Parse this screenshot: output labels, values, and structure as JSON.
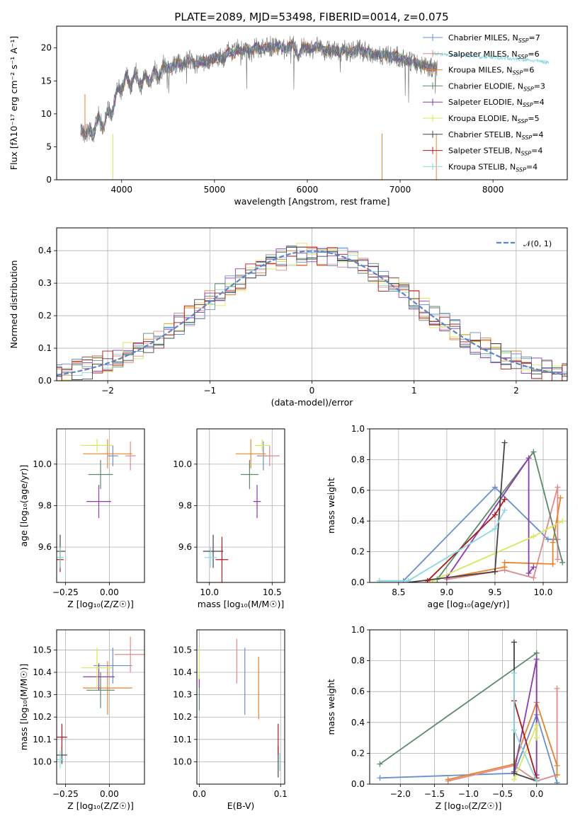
{
  "figure": {
    "title": "PLATE=2089, MJD=53498, FIBERID=0014, z=0.075"
  },
  "colors": {
    "Chabrier MILES": "#6a8fd0",
    "Salpeter MILES": "#e08a8a",
    "Kroupa MILES": "#e8832a",
    "Chabrier ELODIE": "#5a8a6a",
    "Salpeter ELODIE": "#8e3ab0",
    "Kroupa ELODIE": "#d8e85a",
    "Chabrier STELIB": "#444444",
    "Salpeter STELIB": "#b01818",
    "Kroupa STELIB": "#8ad8e0",
    "normal": "#5b84c9"
  },
  "chart_data": [
    {
      "id": "spectrum",
      "type": "line",
      "xlabel": "wavelength [Angstrom, rest frame]",
      "ylabel": "Flux [fλ10⁻¹⁷ erg cm⁻² s⁻¹ A⁻¹]",
      "xlim": [
        3300,
        8800
      ],
      "ylim": [
        0,
        23.3
      ],
      "xticks": [
        4000,
        5000,
        6000,
        7000,
        8000
      ],
      "yticks": [
        0,
        5,
        10,
        15,
        20
      ],
      "grid": false,
      "legend_loc": "upper-right",
      "legend": [
        {
          "name": "Chabrier MILES",
          "nssp": "7"
        },
        {
          "name": "Salpeter MILES",
          "nssp": "6"
        },
        {
          "name": "Kroupa MILES",
          "nssp": "6"
        },
        {
          "name": "Chabrier ELODIE",
          "nssp": "3"
        },
        {
          "name": "Salpeter ELODIE",
          "nssp": "4"
        },
        {
          "name": "Kroupa ELODIE",
          "nssp": "5"
        },
        {
          "name": "Chabrier STELIB",
          "nssp": "4"
        },
        {
          "name": "Salpeter STELIB",
          "nssp": "4"
        },
        {
          "name": "Kroupa STELIB",
          "nssp": "4"
        }
      ],
      "data_trace": {
        "x": [
          3550,
          3600,
          3650,
          3700,
          3750,
          3800,
          3850,
          3900,
          3950,
          4000,
          4050,
          4100,
          4150,
          4200,
          4250,
          4300,
          4350,
          4400,
          4450,
          4500,
          4550,
          4600,
          4650,
          4700,
          4750,
          4800,
          4850,
          4900,
          4950,
          5000,
          5050,
          5100,
          5150,
          5200,
          5250,
          5300,
          5350,
          5400,
          5450,
          5500,
          5550,
          5600,
          5650,
          5700,
          5750,
          5800,
          5850,
          5900,
          5950,
          6000,
          6050,
          6100,
          6150,
          6200,
          6250,
          6300,
          6350,
          6400,
          6450,
          6500,
          6550,
          6600,
          6650,
          6700,
          6750,
          6800,
          6850,
          6900,
          6950,
          7000,
          7050,
          7100,
          7150,
          7200,
          7250,
          7300,
          7350,
          7400
        ],
        "y": [
          8.0,
          6.8,
          7.5,
          7.0,
          9.8,
          7.5,
          10.6,
          9.8,
          14.0,
          13.5,
          15.8,
          14.0,
          16.5,
          13.8,
          16.0,
          14.5,
          16.8,
          15.5,
          17.5,
          16.8,
          17.2,
          17.8,
          17.5,
          18.2,
          18.0,
          17.5,
          18.0,
          17.8,
          18.2,
          18.5,
          18.8,
          18.3,
          19.5,
          19.0,
          19.8,
          19.5,
          20.0,
          19.4,
          20.2,
          19.8,
          20.1,
          20.3,
          20.0,
          20.5,
          19.8,
          20.2,
          20.4,
          18.5,
          20.3,
          20.0,
          19.8,
          20.3,
          20.0,
          19.5,
          19.8,
          19.6,
          19.2,
          19.8,
          19.3,
          19.5,
          20.0,
          19.4,
          19.5,
          19.0,
          19.2,
          18.8,
          19.0,
          18.6,
          18.8,
          18.5,
          18.2,
          18.0,
          17.8,
          17.5,
          17.4,
          17.2,
          17.0,
          16.8
        ]
      },
      "model_trace": {
        "x": [
          7350,
          7500,
          7650,
          7800,
          7950,
          8100,
          8250,
          8400,
          8550,
          8600
        ],
        "y": [
          19.2,
          19.0,
          18.9,
          18.7,
          18.6,
          18.5,
          18.3,
          18.1,
          17.9,
          17.8
        ]
      }
    },
    {
      "id": "residuals",
      "type": "bar",
      "xlabel": "(data-model)/error",
      "ylabel": "Normed distribution",
      "xlim": [
        -2.5,
        2.5
      ],
      "ylim": [
        0,
        0.47
      ],
      "xticks": [
        -2,
        -1,
        0,
        1,
        2
      ],
      "yticks": [
        0.0,
        0.1,
        0.2,
        0.3,
        0.4
      ],
      "grid": true,
      "legend_loc": "upper-right",
      "normal_label": "𝒩(0, 1)",
      "bin_width": 0.1
    },
    {
      "id": "age_vs_Z",
      "type": "scatter",
      "xlabel": "Z [log₁₀(Z/Z☉)]",
      "ylabel": "age  [log₁₀(age/yr)]",
      "xlim": [
        -0.3,
        0.2
      ],
      "ylim": [
        9.43,
        10.17
      ],
      "xticks": [
        -0.25,
        0.0
      ],
      "xticklabels": [
        "−0.25",
        "0.00"
      ],
      "yticks": [
        9.6,
        9.8,
        10.0
      ],
      "grid": true,
      "points": [
        {
          "model": "Chabrier MILES",
          "x": 0.02,
          "y": 10.04,
          "xerr": 0.03,
          "yerr": 0.05
        },
        {
          "model": "Salpeter MILES",
          "x": 0.12,
          "y": 10.04,
          "xerr": 0.03,
          "yerr": 0.07
        },
        {
          "model": "Kroupa MILES",
          "x": -0.01,
          "y": 10.05,
          "xerr": 0.14,
          "yerr": 0.07
        },
        {
          "model": "Chabrier ELODIE",
          "x": -0.05,
          "y": 9.95,
          "xerr": 0.07,
          "yerr": 0.07
        },
        {
          "model": "Salpeter ELODIE",
          "x": -0.06,
          "y": 9.82,
          "xerr": 0.07,
          "yerr": 0.08
        },
        {
          "model": "Kroupa ELODIE",
          "x": -0.07,
          "y": 10.09,
          "xerr": 0.09,
          "yerr": 0.03
        },
        {
          "model": "Chabrier STELIB",
          "x": -0.28,
          "y": 9.58,
          "xerr": 0.03,
          "yerr": 0.08
        },
        {
          "model": "Salpeter STELIB",
          "x": -0.28,
          "y": 9.54,
          "xerr": 0.02,
          "yerr": 0.06
        },
        {
          "model": "Kroupa STELIB",
          "x": -0.28,
          "y": 9.55,
          "xerr": 0.02,
          "yerr": 0.05
        }
      ]
    },
    {
      "id": "age_vs_mass",
      "type": "scatter",
      "xlabel": "mass [log₁₀(M/M☉)]",
      "ylabel": "",
      "xlim": [
        9.9,
        10.6
      ],
      "ylim": [
        9.43,
        10.17
      ],
      "xticks": [
        10.0,
        10.5
      ],
      "yticks": [
        9.6,
        9.8,
        10.0
      ],
      "grid": true,
      "points": [
        {
          "model": "Chabrier MILES",
          "x": 10.43,
          "y": 10.04,
          "xerr": 0.05,
          "yerr": 0.07
        },
        {
          "model": "Salpeter MILES",
          "x": 10.48,
          "y": 10.04,
          "xerr": 0.08,
          "yerr": 0.05
        },
        {
          "model": "Kroupa MILES",
          "x": 10.33,
          "y": 10.05,
          "xerr": 0.12,
          "yerr": 0.07
        },
        {
          "model": "Chabrier ELODIE",
          "x": 10.32,
          "y": 9.95,
          "xerr": 0.07,
          "yerr": 0.07
        },
        {
          "model": "Salpeter ELODIE",
          "x": 10.38,
          "y": 9.82,
          "xerr": 0.03,
          "yerr": 0.08
        },
        {
          "model": "Kroupa ELODIE",
          "x": 10.42,
          "y": 10.09,
          "xerr": 0.06,
          "yerr": 0.03
        },
        {
          "model": "Chabrier STELIB",
          "x": 10.03,
          "y": 9.58,
          "xerr": 0.08,
          "yerr": 0.08
        },
        {
          "model": "Salpeter STELIB",
          "x": 10.1,
          "y": 9.54,
          "xerr": 0.05,
          "yerr": 0.11
        },
        {
          "model": "Kroupa STELIB",
          "x": 10.01,
          "y": 9.55,
          "xerr": 0.05,
          "yerr": 0.05
        }
      ]
    },
    {
      "id": "weight_vs_age",
      "type": "line",
      "xlabel": "age  [log₁₀(age/yr)]",
      "ylabel": "mass weight",
      "xlim": [
        8.2,
        10.25
      ],
      "ylim": [
        0,
        1
      ],
      "xticks": [
        8.5,
        9.0,
        9.5,
        10.0
      ],
      "yticks": [
        0.0,
        0.2,
        0.4,
        0.6,
        0.8,
        1.0
      ],
      "grid": true,
      "series": [
        {
          "model": "Chabrier MILES",
          "x": [
            8.3,
            8.55,
            9.5,
            10.05,
            10.15
          ],
          "y": [
            0.01,
            0.01,
            0.62,
            0.28,
            0.28
          ]
        },
        {
          "model": "Salpeter MILES",
          "x": [
            9.0,
            9.6,
            9.9,
            10.15,
            10.15
          ],
          "y": [
            0.02,
            0.08,
            0.03,
            0.62,
            0.15
          ]
        },
        {
          "model": "Kroupa MILES",
          "x": [
            9.0,
            9.6,
            9.6,
            10.1,
            10.1,
            10.18
          ],
          "y": [
            0.03,
            0.1,
            0.13,
            0.12,
            0.26,
            0.55
          ]
        },
        {
          "model": "Chabrier ELODIE",
          "x": [
            8.9,
            9.9,
            10.2
          ],
          "y": [
            0.02,
            0.85,
            0.13
          ]
        },
        {
          "model": "Salpeter ELODIE",
          "x": [
            9.0,
            9.85,
            9.85,
            9.9
          ],
          "y": [
            0.03,
            0.81,
            0.06,
            0.1
          ]
        },
        {
          "model": "Kroupa ELODIE",
          "x": [
            8.85,
            9.9,
            10.2
          ],
          "y": [
            0.01,
            0.3,
            0.4
          ]
        },
        {
          "model": "Chabrier STELIB",
          "x": [
            8.6,
            9.5,
            9.5,
            9.6
          ],
          "y": [
            0.0,
            0.07,
            0.07,
            0.91
          ]
        },
        {
          "model": "Salpeter STELIB",
          "x": [
            8.8,
            9.5,
            9.6
          ],
          "y": [
            0.01,
            0.44,
            0.54
          ]
        },
        {
          "model": "Kroupa STELIB",
          "x": [
            8.3,
            8.6,
            9.5,
            9.6
          ],
          "y": [
            0.01,
            0.01,
            0.35,
            0.47
          ]
        }
      ]
    },
    {
      "id": "mass_vs_Z",
      "type": "scatter",
      "xlabel": "Z [log₁₀(Z/Z☉)]",
      "ylabel": "mass [log₁₀(M/M☉)]",
      "xlim": [
        -0.3,
        0.2
      ],
      "ylim": [
        9.9,
        10.59
      ],
      "xticks": [
        -0.25,
        0.0
      ],
      "xticklabels": [
        "−0.25",
        "0.00"
      ],
      "yticks": [
        10.0,
        10.1,
        10.2,
        10.3,
        10.4,
        10.5
      ],
      "grid": true,
      "points": [
        {
          "model": "Chabrier MILES",
          "x": 0.02,
          "y": 10.43,
          "xerr": 0.11,
          "yerr": 0.08
        },
        {
          "model": "Salpeter MILES",
          "x": 0.12,
          "y": 10.48,
          "xerr": 0.09,
          "yerr": 0.08
        },
        {
          "model": "Kroupa MILES",
          "x": -0.01,
          "y": 10.33,
          "xerr": 0.14,
          "yerr": 0.12
        },
        {
          "model": "Chabrier ELODIE",
          "x": -0.05,
          "y": 10.32,
          "xerr": 0.08,
          "yerr": 0.08
        },
        {
          "model": "Salpeter ELODIE",
          "x": -0.06,
          "y": 10.38,
          "xerr": 0.09,
          "yerr": 0.06
        },
        {
          "model": "Kroupa ELODIE",
          "x": -0.07,
          "y": 10.42,
          "xerr": 0.09,
          "yerr": 0.09
        },
        {
          "model": "Chabrier STELIB",
          "x": -0.27,
          "y": 10.03,
          "xerr": 0.03,
          "yerr": 0.04
        },
        {
          "model": "Salpeter STELIB",
          "x": -0.27,
          "y": 10.11,
          "xerr": 0.03,
          "yerr": 0.06
        },
        {
          "model": "Kroupa STELIB",
          "x": -0.28,
          "y": 10.01,
          "xerr": 0.02,
          "yerr": 0.04
        }
      ]
    },
    {
      "id": "mass_vs_EBV",
      "type": "scatter",
      "xlabel": "E(B-V)",
      "ylabel": "",
      "xlim": [
        -0.003,
        0.105
      ],
      "ylim": [
        9.9,
        10.59
      ],
      "xticks": [
        0.0,
        0.1
      ],
      "yticks": [
        10.0,
        10.1,
        10.2,
        10.3,
        10.4,
        10.5
      ],
      "grid": true,
      "points": [
        {
          "model": "Chabrier MILES",
          "x": 0.056,
          "y": 10.36,
          "xerr": 0,
          "yerr": 0.15
        },
        {
          "model": "Salpeter MILES",
          "x": 0.046,
          "y": 10.45,
          "xerr": 0,
          "yerr": 0.1
        },
        {
          "model": "Kroupa MILES",
          "x": 0.073,
          "y": 10.33,
          "xerr": 0,
          "yerr": 0.14
        },
        {
          "model": "Chabrier ELODIE",
          "x": 0.0,
          "y": 10.3,
          "xerr": 0,
          "yerr": 0.07
        },
        {
          "model": "Salpeter ELODIE",
          "x": 0.0,
          "y": 10.36,
          "xerr": 0,
          "yerr": 0.03
        },
        {
          "model": "Kroupa ELODIE",
          "x": 0.0,
          "y": 10.44,
          "xerr": 0,
          "yerr": 0.07
        },
        {
          "model": "Chabrier STELIB",
          "x": 0.097,
          "y": 10.0,
          "xerr": 0,
          "yerr": 0.07
        },
        {
          "model": "Salpeter STELIB",
          "x": 0.097,
          "y": 10.1,
          "xerr": 0,
          "yerr": 0.07
        },
        {
          "model": "Kroupa STELIB",
          "x": 0.099,
          "y": 10.0,
          "xerr": 0,
          "yerr": 0.04
        }
      ]
    },
    {
      "id": "weight_vs_Z",
      "type": "line",
      "xlabel": "Z [log₁₀(Z/Z☉)]",
      "ylabel": "mass weight",
      "xlim": [
        -2.45,
        0.45
      ],
      "ylim": [
        0,
        1
      ],
      "xticks": [
        -2.0,
        -1.5,
        -1.0,
        -0.5,
        0.0
      ],
      "xticklabels": [
        "−2.0",
        "−1.5",
        "−1.0",
        "−0.5",
        "0.0"
      ],
      "yticks": [
        0.0,
        0.2,
        0.4,
        0.6,
        0.8,
        1.0
      ],
      "grid": true,
      "series": [
        {
          "model": "Chabrier MILES",
          "x": [
            -2.3,
            -0.33,
            0.0,
            0.3
          ],
          "y": [
            0.04,
            0.07,
            0.45,
            0.01
          ]
        },
        {
          "model": "Salpeter MILES",
          "x": [
            -1.3,
            -0.33,
            0.0,
            0.3,
            0.3
          ],
          "y": [
            0.02,
            0.12,
            0.02,
            0.06,
            0.62
          ]
        },
        {
          "model": "Kroupa MILES",
          "x": [
            -1.3,
            -0.33,
            0.0,
            0.3,
            0.3
          ],
          "y": [
            0.03,
            0.13,
            0.53,
            0.12,
            0.06
          ]
        },
        {
          "model": "Chabrier ELODIE",
          "x": [
            -2.3,
            0.0,
            0.0
          ],
          "y": [
            0.13,
            0.85,
            0.02
          ]
        },
        {
          "model": "Salpeter ELODIE",
          "x": [
            -0.33,
            0.0,
            0.0
          ],
          "y": [
            0.08,
            0.81,
            0.06
          ]
        },
        {
          "model": "Kroupa ELODIE",
          "x": [
            -0.33,
            0.0,
            0.0
          ],
          "y": [
            0.03,
            0.38,
            0.3
          ]
        },
        {
          "model": "Chabrier STELIB",
          "x": [
            -0.33,
            -0.33,
            0.0
          ],
          "y": [
            0.92,
            0.07,
            0.02
          ]
        },
        {
          "model": "Salpeter STELIB",
          "x": [
            -0.33,
            0.0
          ],
          "y": [
            0.54,
            0.04
          ]
        },
        {
          "model": "Kroupa STELIB",
          "x": [
            -0.33,
            -0.33,
            0.0
          ],
          "y": [
            0.72,
            0.35,
            0.02
          ]
        }
      ]
    }
  ]
}
